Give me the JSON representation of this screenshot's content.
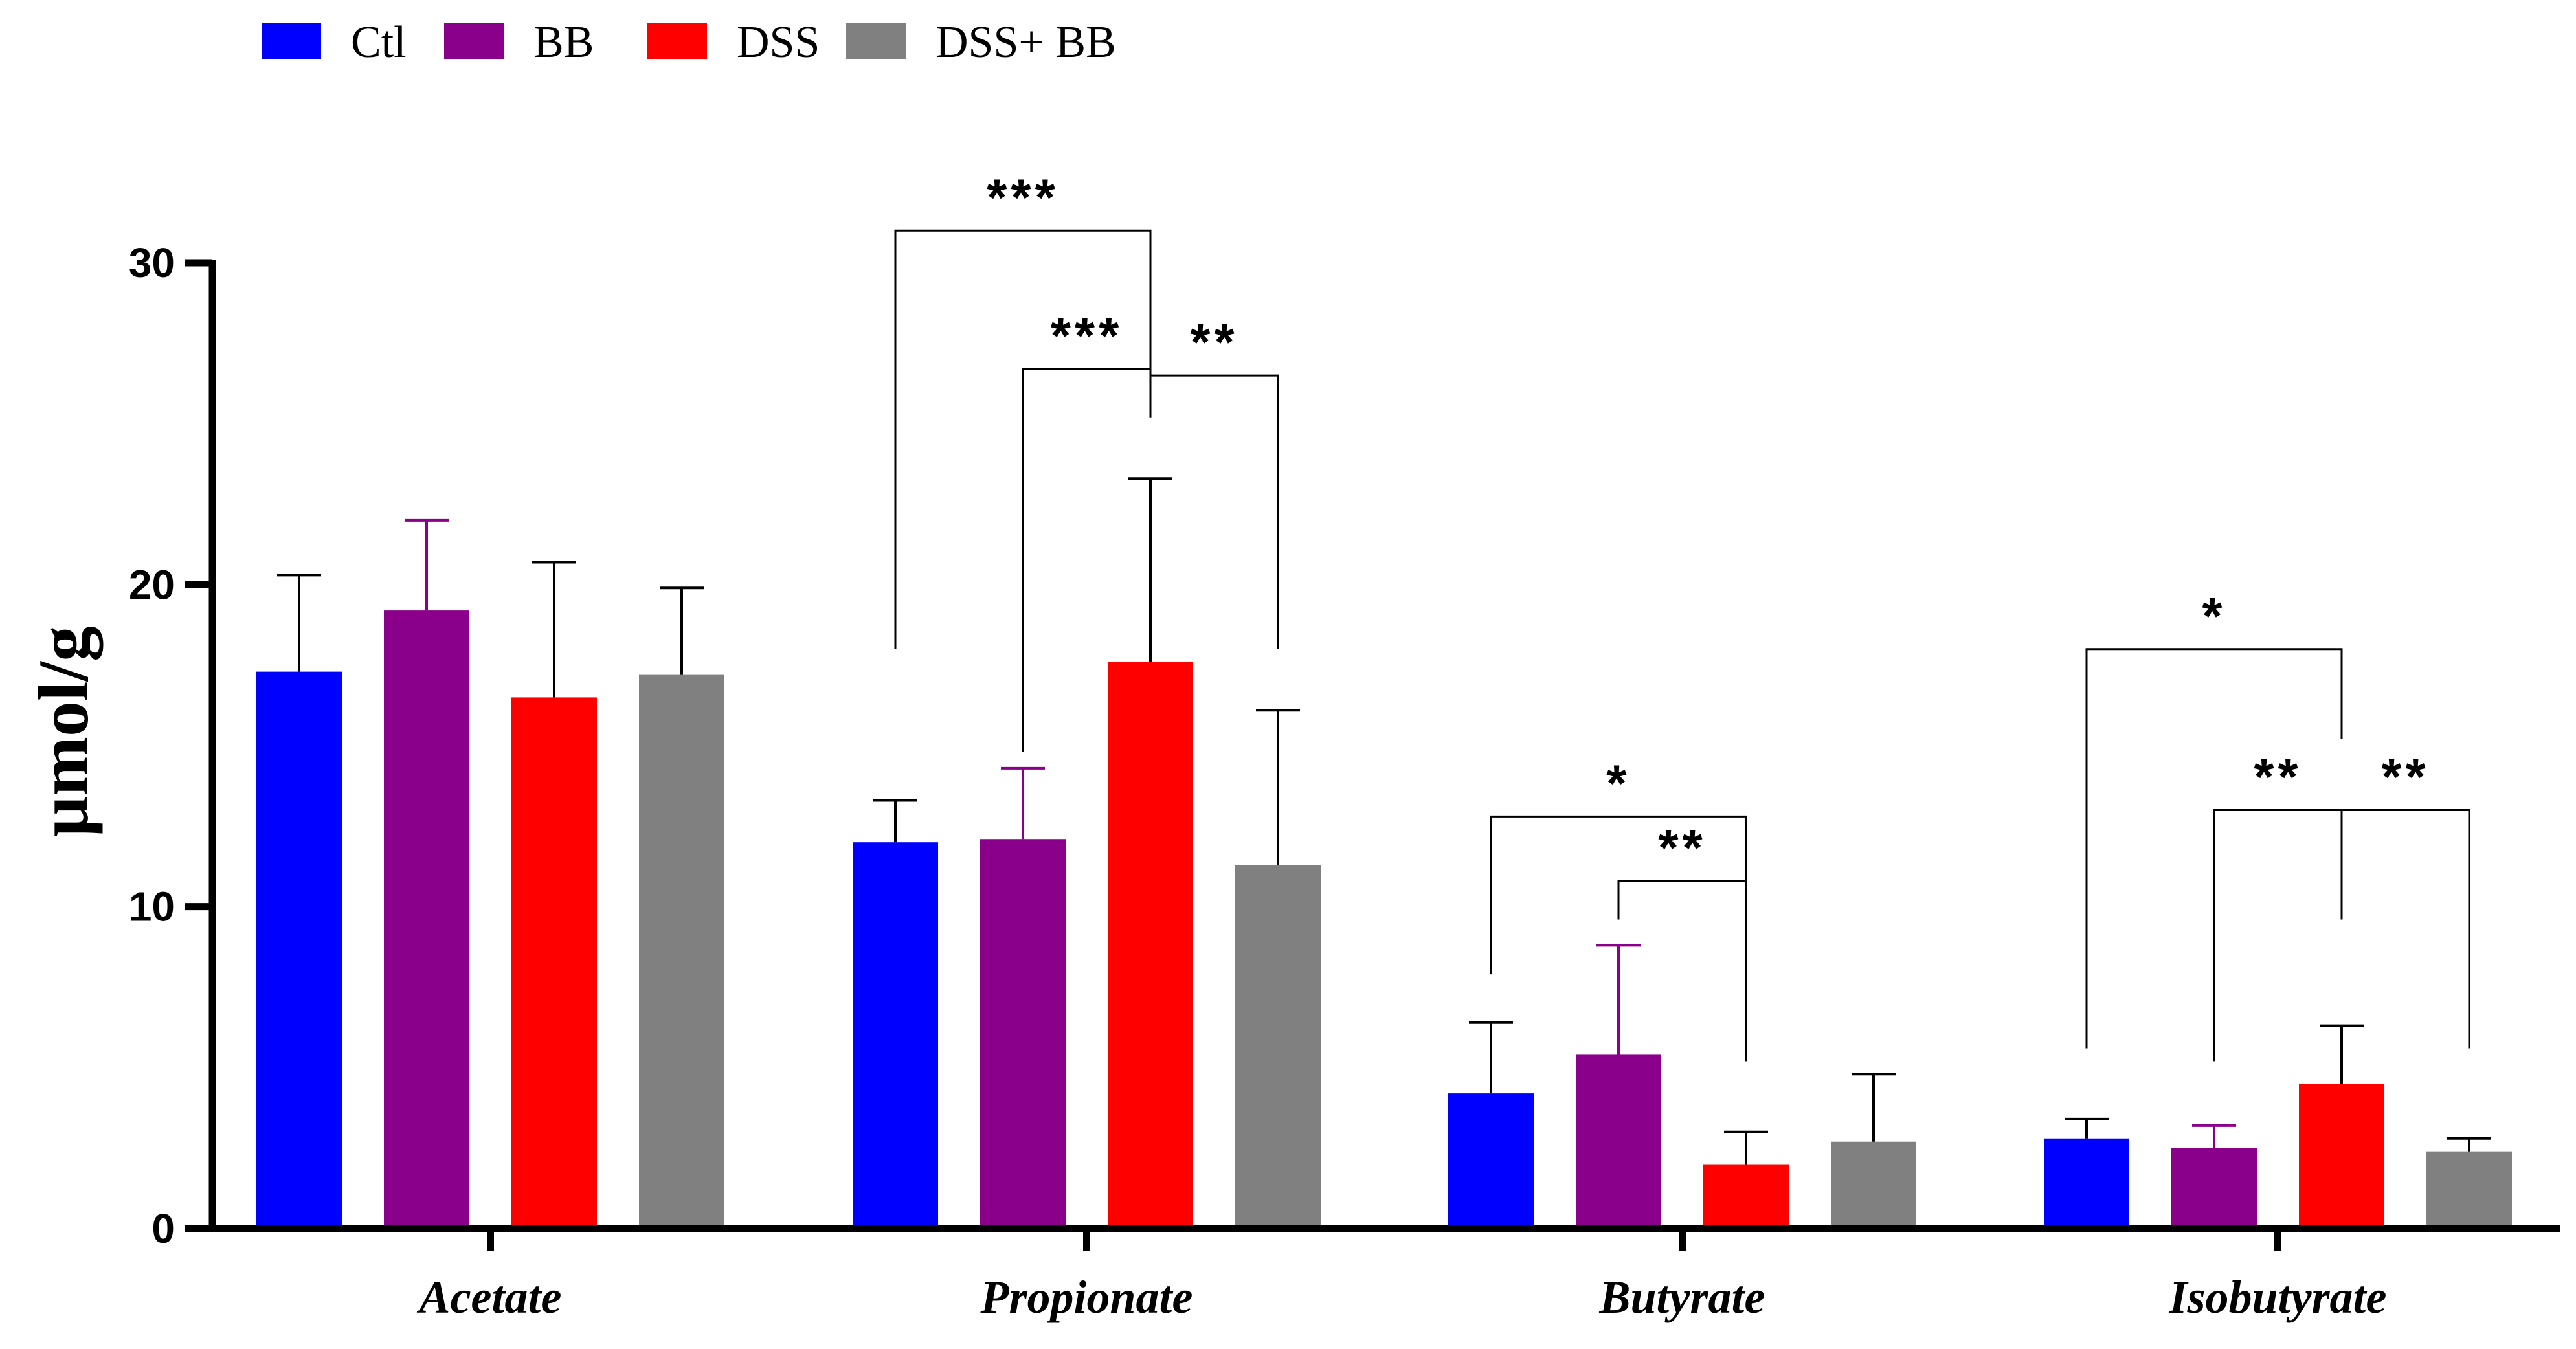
{
  "chart_data": {
    "type": "bar",
    "title": "",
    "xlabel": "",
    "ylabel": "µmol/g",
    "ylim": [
      0,
      30
    ],
    "yticks": [
      "0",
      "10",
      "20",
      "30"
    ],
    "categories": [
      "Acetate",
      "Propionate",
      "Butyrate",
      "Isobutyrate"
    ],
    "series": [
      {
        "name": "Ctl",
        "color": "#0000ff",
        "values": [
          17.3,
          12.0,
          4.2,
          2.8
        ],
        "errors": [
          3.0,
          1.3,
          2.2,
          0.6
        ]
      },
      {
        "name": "BB",
        "color": "#8b008b",
        "values": [
          19.2,
          12.1,
          5.4,
          2.5
        ],
        "errors": [
          2.8,
          2.2,
          3.4,
          0.7
        ]
      },
      {
        "name": "DSS",
        "color": "#ff0000",
        "values": [
          16.5,
          17.6,
          2.0,
          4.5
        ],
        "errors": [
          4.2,
          5.7,
          1.0,
          1.8
        ]
      },
      {
        "name": "DSS+ BB",
        "color": "#808080",
        "values": [
          17.2,
          11.3,
          2.7,
          2.4
        ],
        "errors": [
          2.7,
          4.8,
          2.1,
          0.4
        ]
      }
    ],
    "legend_position": "top-left",
    "significance": [
      {
        "category": 1,
        "from": 0,
        "to": 2,
        "label": "***",
        "top": 31.0,
        "left_end": 18.0,
        "right_end": 25.8
      },
      {
        "category": 1,
        "from": 1,
        "to": 2,
        "label": "***",
        "top": 26.7,
        "left_end": 14.8,
        "right_end": 25.2
      },
      {
        "category": 1,
        "from": 2,
        "to": 3,
        "label": "**",
        "top": 26.5,
        "left_end": 25.8,
        "right_end": 18.0
      },
      {
        "category": 2,
        "from": 0,
        "to": 2,
        "label": "*",
        "top": 12.8,
        "left_end": 7.9,
        "right_end": 5.2
      },
      {
        "category": 2,
        "from": 1,
        "to": 2,
        "label": "**",
        "top": 10.8,
        "left_end": 9.6,
        "right_end": 5.2
      },
      {
        "category": 3,
        "from": 0,
        "to": 2,
        "label": "*",
        "top": 18.0,
        "left_end": 5.6,
        "right_end": 15.2
      },
      {
        "category": 3,
        "from": 1,
        "to": 2,
        "label": "**",
        "top": 13.0,
        "left_end": 5.2,
        "right_end": 9.6
      },
      {
        "category": 3,
        "from": 2,
        "to": 3,
        "label": "**",
        "top": 13.0,
        "left_end": 9.6,
        "right_end": 5.6
      }
    ]
  }
}
